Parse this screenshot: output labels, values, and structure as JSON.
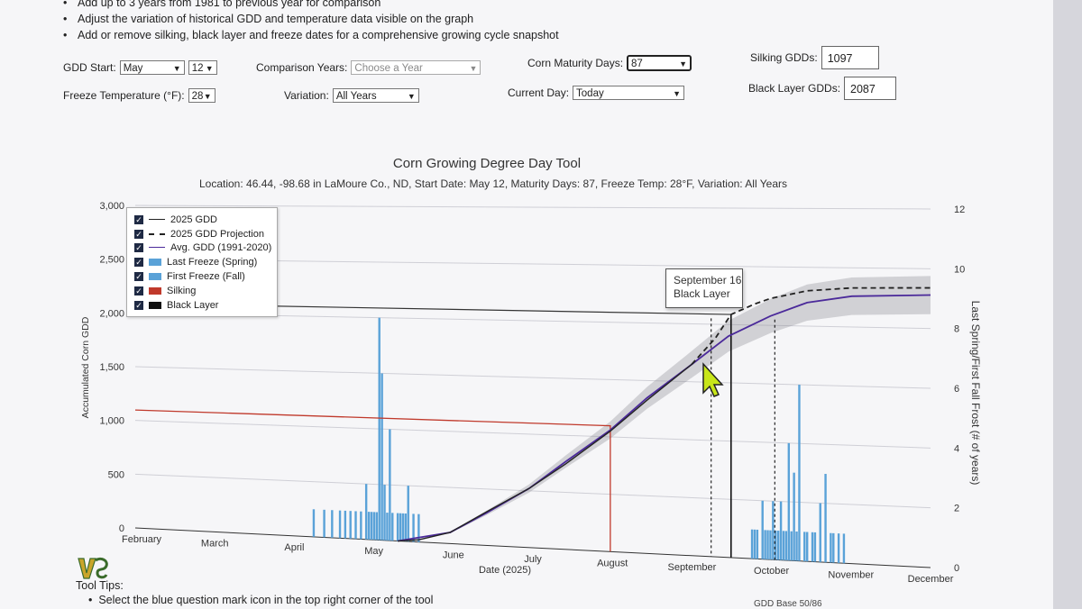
{
  "tips_top": [
    "Add up to 3 years from 1981 to previous year for comparison",
    "Adjust the variation of historical GDD and temperature data visible on the graph",
    "Add or remove silking, black layer and freeze dates for a comprehensive growing cycle snapshot"
  ],
  "controls": {
    "gdd_start_label": "GDD Start:",
    "gdd_start_month": "May",
    "gdd_start_day": "12",
    "comparison_label": "Comparison Years:",
    "comparison_placeholder": "Choose a Year",
    "maturity_label": "Corn Maturity Days:",
    "maturity_value": "87",
    "silking_label": "Silking GDDs:",
    "silking_value": "1097",
    "freeze_label": "Freeze Temperature (°F):",
    "freeze_value": "28",
    "variation_label": "Variation:",
    "variation_value": "All Years",
    "current_day_label": "Current Day:",
    "current_day_value": "Today",
    "black_layer_label": "Black Layer GDDs:",
    "black_layer_value": "2087"
  },
  "chart": {
    "title": "Corn Growing Degree Day Tool",
    "subtitle": "Location: 46.44, -98.68 in LaMoure Co., ND, Start Date: May 12, Maturity Days: 87, Freeze Temp: 28°F, Variation: All Years",
    "legend": [
      {
        "label": "2025 GDD",
        "color": "#222222",
        "style": "solid"
      },
      {
        "label": "2025 GDD Projection",
        "color": "#222222",
        "style": "dashed"
      },
      {
        "label": "Avg. GDD (1991-2020)",
        "color": "#4b2a9a",
        "style": "solid"
      },
      {
        "label": "Last Freeze (Spring)",
        "color": "#5aa2d8",
        "style": "box"
      },
      {
        "label": "First Freeze (Fall)",
        "color": "#5aa2d8",
        "style": "box"
      },
      {
        "label": "Silking",
        "color": "#c0392b",
        "style": "box"
      },
      {
        "label": "Black Layer",
        "color": "#111111",
        "style": "box"
      }
    ],
    "tooltip_date": "September 16",
    "tooltip_label": "Black Layer",
    "x_axis_title": "Date (2025)",
    "y_left_title": "Accumulated Corn GDD",
    "y_right_title": "Last Spring/First Fall Frost (# of years)"
  },
  "chart_data": {
    "type": "line",
    "title": "Corn Growing Degree Day Tool",
    "xlabel": "Date (2025)",
    "ylabel": "Accumulated Corn GDD",
    "y2label": "Last Spring/First Fall Frost (# of years)",
    "x_tick_labels": [
      "February",
      "March",
      "April",
      "May",
      "June",
      "July",
      "August",
      "September",
      "October",
      "November",
      "December"
    ],
    "y_tick_labels": [
      "0",
      "500",
      "1,000",
      "1,500",
      "2,000",
      "2,500",
      "3,000"
    ],
    "y2_tick_labels": [
      "0",
      "2",
      "4",
      "6",
      "8",
      "10",
      "12"
    ],
    "ylim": [
      0,
      3000
    ],
    "y2lim": [
      0,
      12
    ],
    "grid": true,
    "legend_position": "top-left",
    "series": [
      {
        "name": "2025 GDD",
        "x": [
          "2025-05-12",
          "2025-05-20",
          "2025-06-01",
          "2025-06-15",
          "2025-07-01",
          "2025-07-15",
          "2025-08-01",
          "2025-08-15",
          "2025-09-01"
        ],
        "values": [
          0,
          20,
          100,
          300,
          520,
          750,
          1050,
          1330,
          1650
        ]
      },
      {
        "name": "2025 GDD Projection",
        "x": [
          "2025-09-01",
          "2025-09-10",
          "2025-09-16",
          "2025-09-25",
          "2025-10-01",
          "2025-10-15",
          "2025-11-01",
          "2025-12-01"
        ],
        "values": [
          1650,
          1880,
          2087,
          2180,
          2230,
          2300,
          2330,
          2340
        ]
      },
      {
        "name": "Avg. GDD (1991-2020)",
        "x": [
          "2025-05-12",
          "2025-06-01",
          "2025-06-15",
          "2025-07-01",
          "2025-07-15",
          "2025-08-01",
          "2025-08-15",
          "2025-09-01",
          "2025-09-15",
          "2025-10-01",
          "2025-10-15",
          "2025-11-01",
          "2025-12-01"
        ],
        "values": [
          0,
          100,
          290,
          520,
          770,
          1060,
          1350,
          1650,
          1900,
          2080,
          2200,
          2260,
          2280
        ]
      },
      {
        "name": "Last Freeze (Spring)",
        "type": "bar",
        "x": [
          "04-10",
          "04-14",
          "04-17",
          "04-20",
          "04-22",
          "04-24",
          "04-26",
          "04-28",
          "04-30",
          "05-01",
          "05-02",
          "05-03",
          "05-04",
          "05-05",
          "05-06",
          "05-07",
          "05-08",
          "05-09",
          "05-10",
          "05-12",
          "05-13",
          "05-14",
          "05-15",
          "05-16",
          "05-18",
          "05-20"
        ],
        "values": [
          1,
          1,
          1,
          1,
          1,
          1,
          1,
          1,
          2,
          1,
          1,
          1,
          1,
          8,
          6,
          2,
          1,
          4,
          1,
          1,
          1,
          1,
          1,
          2,
          1,
          1
        ]
      },
      {
        "name": "First Freeze (Fall)",
        "type": "bar",
        "x": [
          "09-24",
          "09-25",
          "09-26",
          "09-28",
          "09-29",
          "09-30",
          "10-01",
          "10-02",
          "10-03",
          "10-04",
          "10-05",
          "10-06",
          "10-07",
          "10-08",
          "10-09",
          "10-10",
          "10-11",
          "10-12",
          "10-14",
          "10-15",
          "10-17",
          "10-18",
          "10-20",
          "10-22",
          "10-24",
          "10-25",
          "10-27",
          "10-29"
        ],
        "values": [
          1,
          1,
          1,
          2,
          1,
          1,
          1,
          2,
          1,
          1,
          2,
          1,
          1,
          4,
          1,
          3,
          1,
          6,
          1,
          1,
          1,
          1,
          2,
          3,
          1,
          1,
          1,
          1
        ]
      }
    ],
    "markers": [
      {
        "name": "Silking",
        "date": "2025-08-01",
        "gdd": 1097
      },
      {
        "name": "Black Layer",
        "date": "2025-09-16",
        "gdd": 2087
      }
    ]
  }
}
